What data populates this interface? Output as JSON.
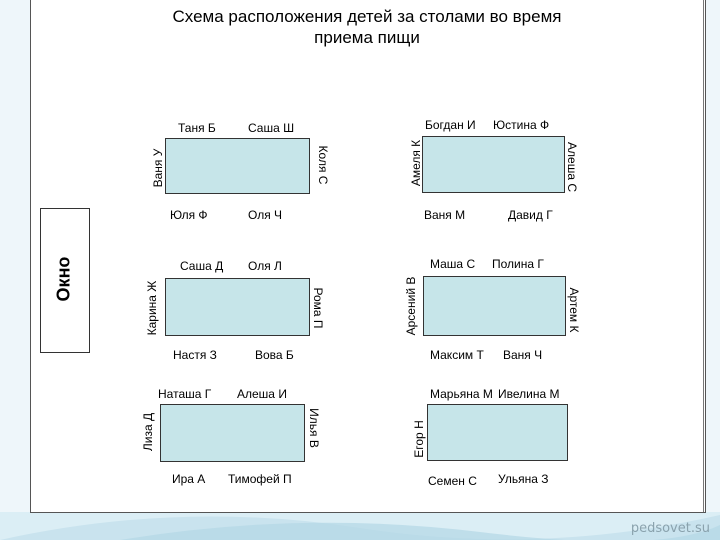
{
  "title_line1": "Схема расположения детей за столами во время",
  "title_line2": "приема пищи",
  "window_label": "Окно",
  "watermark": "pedsovet.su",
  "tables": [
    {
      "top_left": "Таня Б",
      "top_right": "Саша Ш",
      "left": "Ваня У",
      "right": "Коля С",
      "bottom_left": "Юля Ф",
      "bottom_right": "Оля Ч"
    },
    {
      "top_left": "Богдан И",
      "top_right": "Юстина Ф",
      "left": "Амеля К",
      "right": "Алеша С",
      "bottom_left": "Ваня М",
      "bottom_right": "Давид Г"
    },
    {
      "top_left": "Саша Д",
      "top_right": "Оля Л",
      "left": "Карина Ж",
      "right": "Рома П",
      "bottom_left": "Настя З",
      "bottom_right": "Вова Б"
    },
    {
      "top_left": "Маша С",
      "top_right": "Полина Г",
      "left": "Арсений В",
      "right": "Артем К",
      "bottom_left": "Максим Т",
      "bottom_right": "Ваня Ч"
    },
    {
      "top_left": "Наташа Г",
      "top_right": "Алеша И",
      "left": "Лиза Д",
      "right": "Илья В",
      "bottom_left": "Ира А",
      "bottom_right": "Тимофей П"
    },
    {
      "top_left": "Марьяна М",
      "top_right": "Ивелина М",
      "left": "Егор Н",
      "right": "",
      "bottom_left": "Семен С",
      "bottom_right": "Ульяна З"
    }
  ]
}
